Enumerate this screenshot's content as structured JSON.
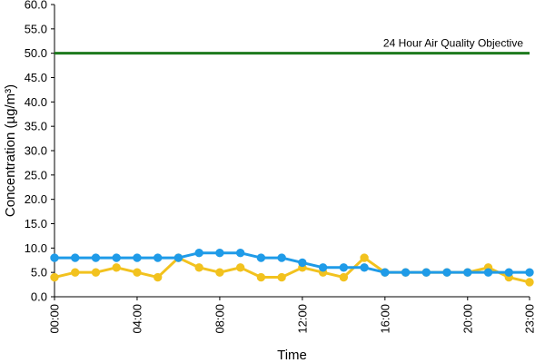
{
  "chart_data": {
    "type": "line",
    "xlabel": "Time",
    "ylabel": "Concentration (µg/m³)",
    "ylim": [
      0,
      60
    ],
    "yticks": [
      "0.0",
      "5.0",
      "10.0",
      "15.0",
      "20.0",
      "25.0",
      "30.0",
      "35.0",
      "40.0",
      "45.0",
      "50.0",
      "55.0",
      "60.0"
    ],
    "x": [
      "00:00",
      "01:00",
      "02:00",
      "03:00",
      "04:00",
      "05:00",
      "06:00",
      "07:00",
      "08:00",
      "09:00",
      "10:00",
      "11:00",
      "12:00",
      "13:00",
      "14:00",
      "15:00",
      "16:00",
      "17:00",
      "18:00",
      "19:00",
      "20:00",
      "21:00",
      "22:00",
      "23:00"
    ],
    "xtick_labels": [
      "00:00",
      "04:00",
      "08:00",
      "12:00",
      "16:00",
      "20:00",
      "23:00"
    ],
    "grid": false,
    "series": [
      {
        "color": "#f2c21e",
        "values": [
          4,
          5,
          5,
          6,
          5,
          4,
          8,
          6,
          5,
          6,
          4,
          4,
          6,
          5,
          4,
          8,
          5,
          5,
          5,
          5,
          5,
          6,
          4,
          3
        ]
      },
      {
        "color": "#1f9be8",
        "values": [
          8,
          8,
          8,
          8,
          8,
          8,
          8,
          9,
          9,
          9,
          8,
          8,
          7,
          6,
          6,
          6,
          5,
          5,
          5,
          5,
          5,
          5,
          5,
          5
        ]
      }
    ],
    "reference_line": {
      "value": 50,
      "color": "#1d7a1d",
      "label": "24 Hour Air Quality Objective"
    }
  }
}
